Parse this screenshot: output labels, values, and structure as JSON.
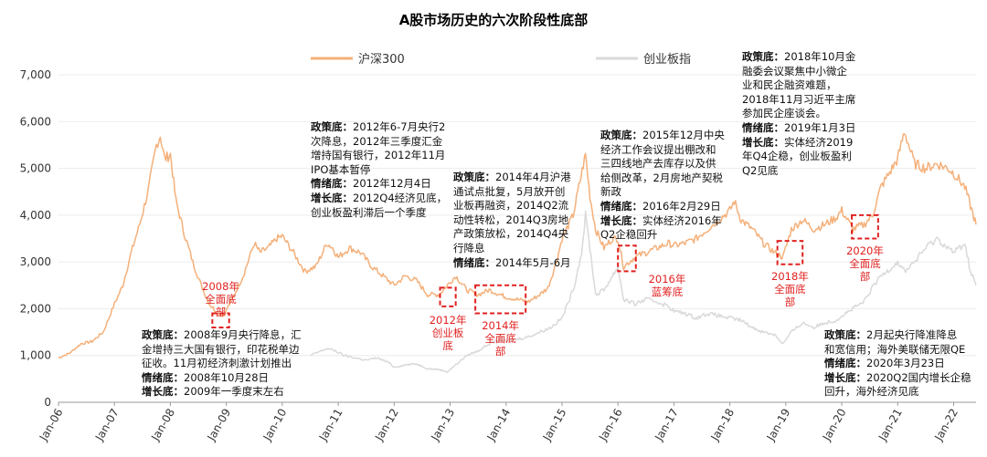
{
  "chart_data": {
    "type": "line",
    "title": "A股市场历史的六次阶段性底部",
    "ylim": [
      0,
      7000
    ],
    "y_ticks": [
      "0",
      "1,000",
      "2,000",
      "3,000",
      "4,000",
      "5,000",
      "6,000",
      "7,000"
    ],
    "x_ticks": [
      "Jan-06",
      "Jan-07",
      "Jan-08",
      "Jan-09",
      "Jan-10",
      "Jan-11",
      "Jan-12",
      "Jan-13",
      "Jan-14",
      "Jan-15",
      "Jan-16",
      "Jan-17",
      "Jan-18",
      "Jan-19",
      "Jan-20",
      "Jan-21",
      "Jan-22"
    ],
    "x_range": [
      2006.0,
      2022.4
    ],
    "legend": {
      "placement": "top",
      "items": [
        "沪深300",
        "创业板指"
      ]
    },
    "colors": {
      "hs300": "#f4b07a",
      "cyb": "#d9d9d9",
      "highlight": "#e02020"
    },
    "series": [
      {
        "name": "沪深300",
        "x": [
          2006.0,
          2006.2,
          2006.4,
          2006.6,
          2006.8,
          2007.0,
          2007.15,
          2007.3,
          2007.45,
          2007.6,
          2007.75,
          2007.82,
          2007.9,
          2008.0,
          2008.1,
          2008.25,
          2008.4,
          2008.55,
          2008.7,
          2008.85,
          2008.95,
          2009.1,
          2009.3,
          2009.5,
          2009.6,
          2009.75,
          2009.9,
          2010.0,
          2010.2,
          2010.4,
          2010.6,
          2010.8,
          2010.9,
          2011.0,
          2011.2,
          2011.4,
          2011.6,
          2011.8,
          2012.0,
          2012.2,
          2012.4,
          2012.6,
          2012.8,
          2012.95,
          2013.1,
          2013.3,
          2013.5,
          2013.7,
          2013.9,
          2014.0,
          2014.2,
          2014.4,
          2014.6,
          2014.75,
          2014.9,
          2015.0,
          2015.2,
          2015.3,
          2015.42,
          2015.5,
          2015.6,
          2015.75,
          2015.9,
          2016.0,
          2016.1,
          2016.3,
          2016.5,
          2016.7,
          2016.9,
          2017.0,
          2017.2,
          2017.4,
          2017.6,
          2017.8,
          2018.0,
          2018.08,
          2018.2,
          2018.4,
          2018.6,
          2018.8,
          2018.95,
          2019.1,
          2019.3,
          2019.5,
          2019.7,
          2019.9,
          2020.0,
          2020.2,
          2020.4,
          2020.55,
          2020.7,
          2020.9,
          2021.0,
          2021.12,
          2021.3,
          2021.5,
          2021.7,
          2021.9,
          2022.0,
          2022.2,
          2022.3,
          2022.4
        ],
        "values": [
          950,
          1050,
          1250,
          1300,
          1500,
          2100,
          2500,
          3200,
          3800,
          4500,
          5500,
          5700,
          5200,
          5300,
          4300,
          3600,
          3000,
          2500,
          2100,
          1900,
          1850,
          2200,
          2700,
          3400,
          3200,
          3300,
          3500,
          3550,
          3200,
          2800,
          2900,
          3400,
          3300,
          3100,
          3300,
          3200,
          2900,
          2700,
          2500,
          2700,
          2600,
          2300,
          2300,
          2500,
          2700,
          2400,
          2300,
          2400,
          2300,
          2250,
          2200,
          2150,
          2300,
          2450,
          3000,
          3500,
          4000,
          4600,
          5300,
          4400,
          3700,
          3300,
          3500,
          3500,
          2900,
          3100,
          3200,
          3300,
          3400,
          3350,
          3400,
          3500,
          3700,
          3900,
          4100,
          4300,
          3900,
          3700,
          3400,
          3200,
          3100,
          3700,
          3900,
          3700,
          3800,
          3950,
          4100,
          3700,
          3800,
          4000,
          4600,
          5000,
          5200,
          5800,
          5100,
          5000,
          5100,
          5000,
          4900,
          4600,
          4200,
          3800
        ]
      },
      {
        "name": "创业板指",
        "x": [
          2010.5,
          2010.8,
          2010.95,
          2011.1,
          2011.3,
          2011.5,
          2011.7,
          2011.9,
          2012.0,
          2012.2,
          2012.4,
          2012.6,
          2012.8,
          2012.95,
          2013.1,
          2013.3,
          2013.5,
          2013.7,
          2013.9,
          2014.0,
          2014.2,
          2014.4,
          2014.6,
          2014.8,
          2015.0,
          2015.2,
          2015.35,
          2015.42,
          2015.5,
          2015.6,
          2015.75,
          2015.9,
          2016.0,
          2016.1,
          2016.3,
          2016.5,
          2016.7,
          2016.9,
          2017.0,
          2017.2,
          2017.4,
          2017.6,
          2017.8,
          2018.0,
          2018.2,
          2018.4,
          2018.6,
          2018.8,
          2018.95,
          2019.1,
          2019.3,
          2019.5,
          2019.7,
          2019.9,
          2020.0,
          2020.2,
          2020.4,
          2020.55,
          2020.7,
          2020.9,
          2021.0,
          2021.12,
          2021.3,
          2021.5,
          2021.7,
          2021.9,
          2022.0,
          2022.2,
          2022.3,
          2022.4
        ],
        "values": [
          1000,
          1150,
          1100,
          1000,
          950,
          900,
          950,
          850,
          750,
          800,
          820,
          720,
          700,
          650,
          800,
          1000,
          1100,
          1250,
          1350,
          1300,
          1350,
          1400,
          1500,
          1600,
          1800,
          2400,
          3200,
          4000,
          3300,
          2300,
          2400,
          2700,
          2900,
          2200,
          2100,
          2200,
          2150,
          2050,
          1950,
          1900,
          1800,
          1900,
          1850,
          1800,
          1750,
          1600,
          1500,
          1450,
          1250,
          1500,
          1700,
          1600,
          1700,
          1750,
          1850,
          2000,
          2150,
          2450,
          2700,
          2900,
          3000,
          2800,
          3000,
          3300,
          3500,
          3300,
          3200,
          3400,
          2800,
          2500
        ]
      }
    ],
    "highlights": [
      {
        "label": "2008年\n全面底\n部",
        "x0": 2008.75,
        "x1": 2009.05,
        "y0": 1600,
        "y1": 1900
      },
      {
        "label": "2012年\n创业板\n底",
        "x0": 2012.82,
        "x1": 2013.1,
        "y0": 2050,
        "y1": 2450
      },
      {
        "label": "2014年\n全面底\n部",
        "x0": 2013.45,
        "x1": 2014.35,
        "y0": 1900,
        "y1": 2500
      },
      {
        "label": "2016年\n蓝筹底",
        "x0": 2016.0,
        "x1": 2016.32,
        "y0": 2800,
        "y1": 3350
      },
      {
        "label": "2018年\n全面底\n部",
        "x0": 2018.85,
        "x1": 2019.3,
        "y0": 2950,
        "y1": 3450
      },
      {
        "label": "2020年\n全面底\n部",
        "x0": 2020.18,
        "x1": 2020.65,
        "y0": 3500,
        "y1": 4000
      }
    ]
  },
  "annotations": [
    {
      "lines": [
        {
          "k": "政策底：",
          "v": "2008年9月央行降息，汇"
        },
        {
          "k": "",
          "v": "金增持三大国有银行，印花税单边"
        },
        {
          "k": "",
          "v": "征收。11月初经济刺激计划推出"
        },
        {
          "k": "情绪底：",
          "v": "2008年10月28日"
        },
        {
          "k": "增长底：",
          "v": "2009年一季度末左右"
        }
      ]
    },
    {
      "lines": [
        {
          "k": "政策底：",
          "v": "2012年6-7月央行2"
        },
        {
          "k": "",
          "v": "次降息，2012年三季度汇金"
        },
        {
          "k": "",
          "v": "增持国有银行，2012年11月"
        },
        {
          "k": "",
          "v": "IPO基本暂停"
        },
        {
          "k": "情绪底：",
          "v": "2012年12月4日"
        },
        {
          "k": "增长底：",
          "v": "2012Q4经济见底，"
        },
        {
          "k": "",
          "v": "创业板盈利滞后一个季度"
        }
      ]
    },
    {
      "lines": [
        {
          "k": "政策底：",
          "v": "2014年4月沪港"
        },
        {
          "k": "",
          "v": "通试点批复，5月放开创"
        },
        {
          "k": "",
          "v": "业板再融资，2014Q2流"
        },
        {
          "k": "",
          "v": "动性转松，2014Q3房地"
        },
        {
          "k": "",
          "v": "产政策放松，2014Q4央"
        },
        {
          "k": "",
          "v": "行降息"
        },
        {
          "k": "情绪底：",
          "v": "2014年5月-6月"
        }
      ]
    },
    {
      "lines": [
        {
          "k": "政策底：",
          "v": "2015年12月中央"
        },
        {
          "k": "",
          "v": "经济工作会议提出棚改和"
        },
        {
          "k": "",
          "v": "三四线地产去库存以及供"
        },
        {
          "k": "",
          "v": "给侧改革，2月房地产契税"
        },
        {
          "k": "",
          "v": "新政"
        },
        {
          "k": "情绪底：",
          "v": "2016年2月29日"
        },
        {
          "k": "增长底：",
          "v": "实体经济2016年"
        },
        {
          "k": "",
          "v": "Q2企稳回升"
        }
      ]
    },
    {
      "lines": [
        {
          "k": "政策底：",
          "v": "2018年10月金"
        },
        {
          "k": "",
          "v": "融委会议聚焦中小微企"
        },
        {
          "k": "",
          "v": "业和民企融资难题，"
        },
        {
          "k": "",
          "v": "2018年11月习近平主席"
        },
        {
          "k": "",
          "v": "参加民企座谈会。"
        },
        {
          "k": "情绪底：",
          "v": "2019年1月3日"
        },
        {
          "k": "增长底：",
          "v": "实体经济2019"
        },
        {
          "k": "",
          "v": "年Q4企稳，创业板盈利"
        },
        {
          "k": "",
          "v": "Q2见底"
        }
      ]
    },
    {
      "lines": [
        {
          "k": "政策底：",
          "v": "2月起央行降准降息"
        },
        {
          "k": "",
          "v": "和宽信用；海外美联储无限QE"
        },
        {
          "k": "情绪底：",
          "v": "2020年3月23日"
        },
        {
          "k": "增长底：",
          "v": "2020Q2国内增长企稳"
        },
        {
          "k": "",
          "v": "回升，海外经济见底"
        }
      ]
    }
  ]
}
